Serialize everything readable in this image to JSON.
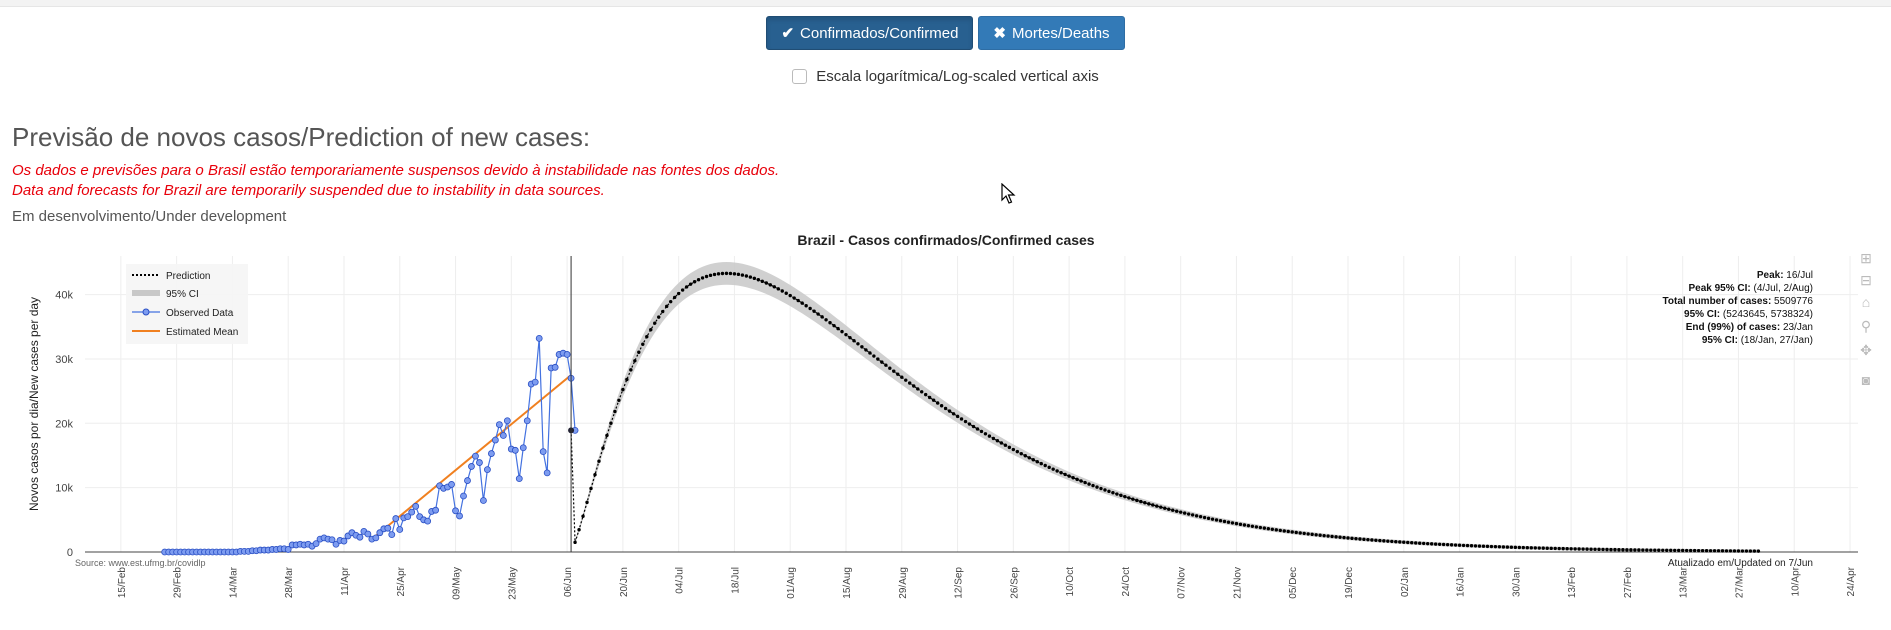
{
  "buttons": {
    "confirmed": "Confirmados/Confirmed",
    "deaths": "Mortes/Deaths"
  },
  "log_checkbox_label": "Escala logarítmica/Log-scaled vertical axis",
  "heading": "Previsão de novos casos/Prediction of new cases:",
  "warning_pt": "Os dados e previsões para o Brasil estão temporariamente suspensos devido à instabilidade nas fontes dos dados.",
  "warning_en": "Data and forecasts for Brazil are temporarily suspended due to instability in data sources.",
  "dev_note": "Em desenvolvimento/Under development",
  "colors": {
    "button": "#337ab7",
    "warning": "#e8000b",
    "observed": "#4472e0",
    "mean": "#f08020",
    "band": "#c8c8c8",
    "prediction": "#000000"
  },
  "chart_data": {
    "type": "line",
    "title": "Brazil - Casos confirmados/Confirmed cases",
    "ylabel": "Novos casos por dia/New cases per day",
    "ylim": [
      0,
      46000
    ],
    "y_ticks": [
      0,
      10000,
      20000,
      30000,
      40000
    ],
    "y_tick_labels": [
      "0",
      "10k",
      "20k",
      "30k",
      "40k"
    ],
    "x_range": [
      "2020-02-06",
      "2021-04-26"
    ],
    "x_tick_labels": [
      "15/Feb",
      "29/Feb",
      "14/Mar",
      "28/Mar",
      "11/Apr",
      "25/Apr",
      "09/May",
      "23/May",
      "06/Jun",
      "20/Jun",
      "04/Jul",
      "18/Jul",
      "01/Aug",
      "15/Aug",
      "29/Aug",
      "12/Sep",
      "26/Sep",
      "10/Oct",
      "24/Oct",
      "07/Nov",
      "21/Nov",
      "05/Dec",
      "19/Dec",
      "02/Jan",
      "16/Jan",
      "30/Jan",
      "13/Feb",
      "27/Feb",
      "13/Mar",
      "27/Mar",
      "10/Apr",
      "24/Apr"
    ],
    "x_tick_dates": [
      "2020-02-15",
      "2020-02-29",
      "2020-03-14",
      "2020-03-28",
      "2020-04-11",
      "2020-04-25",
      "2020-05-09",
      "2020-05-23",
      "2020-06-06",
      "2020-06-20",
      "2020-07-04",
      "2020-07-18",
      "2020-08-01",
      "2020-08-15",
      "2020-08-29",
      "2020-09-12",
      "2020-09-26",
      "2020-10-10",
      "2020-10-24",
      "2020-11-07",
      "2020-11-21",
      "2020-12-05",
      "2020-12-19",
      "2021-01-02",
      "2021-01-16",
      "2021-01-30",
      "2021-02-13",
      "2021-02-27",
      "2021-03-13",
      "2021-03-27",
      "2021-04-10",
      "2021-04-24"
    ],
    "legend": [
      "Prediction",
      "95% CI",
      "Observed Data",
      "Estimated Mean"
    ],
    "legend_position": "top-left",
    "grid": true,
    "vline_date": "2020-06-07",
    "observed": {
      "name": "Observed Data",
      "start_date": "2020-02-26",
      "values": [
        0,
        0,
        0,
        0,
        0,
        0,
        0,
        0,
        0,
        0,
        0,
        0,
        0,
        0,
        0,
        0,
        0,
        0,
        0,
        100,
        100,
        100,
        200,
        200,
        300,
        300,
        300,
        400,
        400,
        500,
        500,
        400,
        1100,
        1100,
        1200,
        1100,
        1200,
        900,
        1300,
        2000,
        2200,
        2000,
        1900,
        1200,
        1800,
        1700,
        2500,
        3000,
        2600,
        2300,
        3200,
        2800,
        2000,
        2200,
        3000,
        3600,
        3700,
        2700,
        5200,
        3500,
        5300,
        5500,
        6200,
        7100,
        5500,
        5000,
        4800,
        6300,
        6500,
        10300,
        9900,
        10100,
        10500,
        6400,
        5600,
        8700,
        11100,
        13300,
        14900,
        13900,
        8000,
        12800,
        15300,
        17400,
        19800,
        18100,
        20400,
        16000,
        15800,
        11400,
        16200,
        20400,
        26100,
        26400,
        33200,
        15600,
        12300,
        28600,
        28700,
        30700,
        30900,
        30700,
        27000,
        18900
      ]
    },
    "mean": {
      "name": "Estimated Mean",
      "start_date": "2020-04-18",
      "end_date": "2020-06-07",
      "start_value": 2000,
      "end_value": 27500
    },
    "prediction": {
      "name": "Prediction",
      "start_date": "2020-06-07",
      "peak_date": "2020-07-16",
      "peak_value": 43300,
      "end_date": "2021-04-01",
      "start_value": 18900
    },
    "annotation": {
      "lines": [
        {
          "key": "Peak:",
          "value": " 16/Jul"
        },
        {
          "key": "Peak 95% CI:",
          "value": " (4/Jul, 2/Aug)"
        },
        {
          "key": "Total number of cases:",
          "value": " 5509776"
        },
        {
          "key": "95% CI:",
          "value": " (5243645, 5738324)"
        },
        {
          "key": "End (99%) of cases:",
          "value": " 23/Jan"
        },
        {
          "key": "95% CI:",
          "value": " (18/Jan, 27/Jan)"
        }
      ]
    },
    "source_text": "Source: www.est.ufmg.br/covidlp",
    "updated_text": "Atualizado em/Updated on 7/Jun"
  },
  "modebar_icons": [
    "zoom-in-icon",
    "zoom-out-icon",
    "home-icon",
    "zoom-icon",
    "pan-icon",
    "camera-icon"
  ]
}
